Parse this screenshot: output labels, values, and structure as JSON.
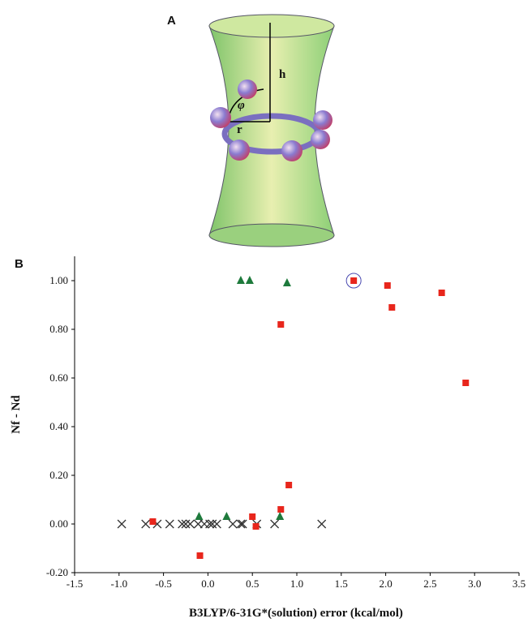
{
  "panel_a": {
    "label": "A",
    "h_label": "h",
    "r_label": "r",
    "phi_label": "φ"
  },
  "chart_data": {
    "type": "scatter",
    "panel_label": "B",
    "x_label": "B3LYP/6-31G*(solution) error (kcal/mol)",
    "y_label": "Nf - Nd",
    "xlim": [
      -1.5,
      3.5
    ],
    "ylim": [
      -0.2,
      1.1
    ],
    "xticks": [
      -1.5,
      {
        "value": -1,
        "label": "-1.0"
      },
      -0.5,
      {
        "value": 0,
        "label": "0.0"
      },
      0.5,
      {
        "value": 1,
        "label": "1.0"
      },
      1.5,
      {
        "value": 2,
        "label": "2.0"
      },
      2.5,
      {
        "value": 3,
        "label": "3.0"
      },
      3.5
    ],
    "yticks": [
      {
        "value": -0.2,
        "label": "-0.20"
      },
      {
        "value": 0,
        "label": "0.00"
      },
      {
        "value": 0.2,
        "label": "0.20"
      },
      {
        "value": 0.4,
        "label": "0.40"
      },
      {
        "value": 0.6,
        "label": "0.60"
      },
      {
        "value": 0.8,
        "label": "0.80"
      },
      {
        "value": 1,
        "label": "1.00"
      }
    ],
    "series": [
      {
        "marker": "x",
        "color": "#333333",
        "x": [
          -0.97,
          -0.7,
          -0.57,
          -0.43,
          -0.29,
          -0.25,
          -0.2,
          -0.11,
          -0.04,
          0.02,
          0.05,
          0.1,
          0.28,
          0.37,
          0.39,
          0.55,
          0.75,
          1.28
        ],
        "values": [
          0,
          0,
          0,
          0,
          0,
          0,
          0,
          0,
          0,
          0,
          0,
          0,
          0,
          0,
          0,
          0,
          0,
          0
        ]
      },
      {
        "marker": "square",
        "color": "#e8261c",
        "highlight": 7,
        "x": [
          -0.62,
          -0.09,
          0.5,
          0.54,
          0.82,
          0.82,
          0.91,
          1.64,
          2.02,
          2.07,
          2.63,
          2.9
        ],
        "values": [
          0.01,
          -0.13,
          0.03,
          -0.01,
          0.06,
          0.82,
          0.16,
          1.0,
          0.98,
          0.89,
          0.95,
          0.58
        ]
      },
      {
        "marker": "triangle",
        "color": "#1e7a3c",
        "x": [
          0.37,
          0.47,
          0.89,
          -0.1,
          0.21,
          0.81
        ],
        "values": [
          1.0,
          1.0,
          0.99,
          0.03,
          0.03,
          0.03
        ]
      }
    ]
  }
}
